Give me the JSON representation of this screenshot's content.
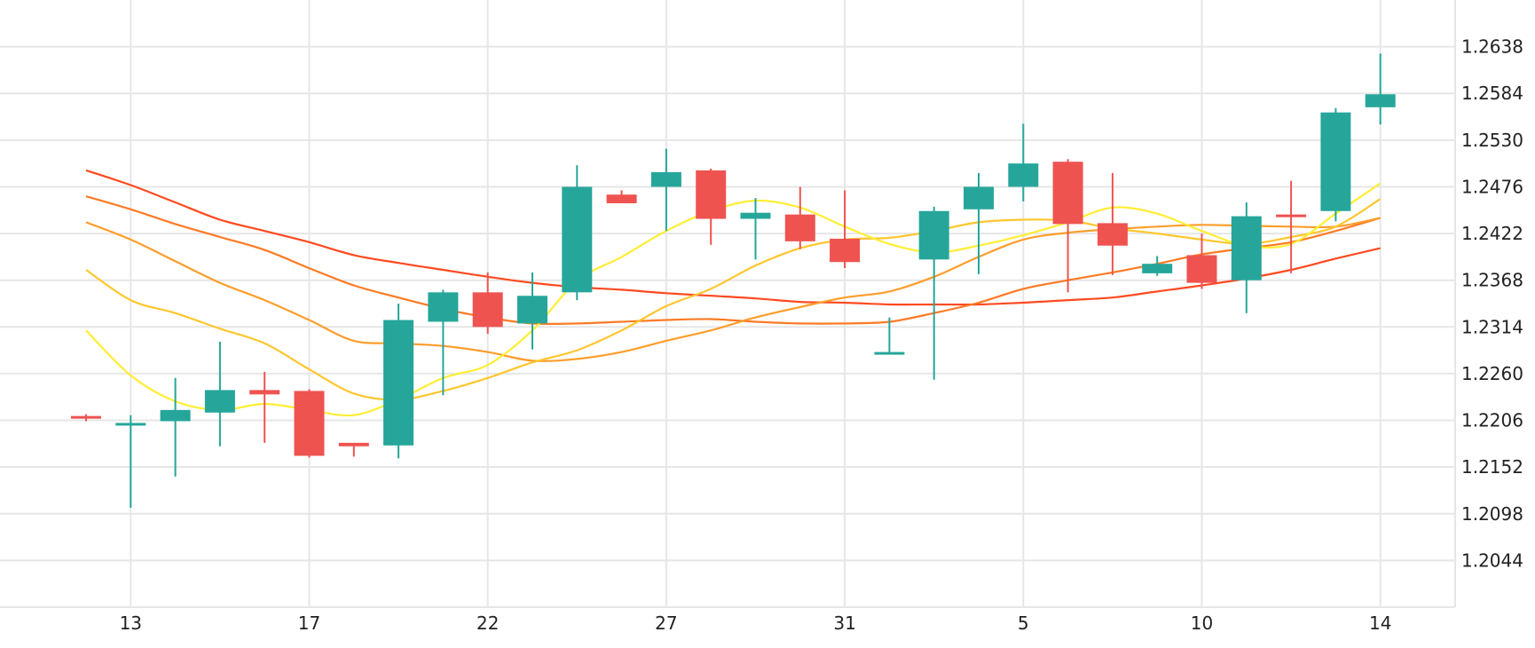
{
  "chart_data": {
    "type": "candlestick",
    "title": "",
    "xlabel": "",
    "ylabel": "",
    "ylim": [
      1.199,
      1.2692
    ],
    "yticks": [
      "1.2638",
      "1.2584",
      "1.2530",
      "1.2476",
      "1.2422",
      "1.2368",
      "1.2314",
      "1.2260",
      "1.2206",
      "1.2152",
      "1.2098",
      "1.2044"
    ],
    "xtick_labels": [
      {
        "index": 1,
        "label": "13"
      },
      {
        "index": 5,
        "label": "17"
      },
      {
        "index": 9,
        "label": "22"
      },
      {
        "index": 13,
        "label": "27"
      },
      {
        "index": 17,
        "label": "31"
      },
      {
        "index": 21,
        "label": "5"
      },
      {
        "index": 25,
        "label": "10"
      },
      {
        "index": 29,
        "label": "14"
      }
    ],
    "grid": true,
    "up_color": "#26a69a",
    "down_color": "#ef5350",
    "candles": [
      {
        "o": 1.2211,
        "h": 1.2213,
        "l": 1.2205,
        "c": 1.2209
      },
      {
        "o": 1.2201,
        "h": 1.2212,
        "l": 1.2105,
        "c": 1.2203
      },
      {
        "o": 1.2205,
        "h": 1.2255,
        "l": 1.2141,
        "c": 1.2218
      },
      {
        "o": 1.2215,
        "h": 1.2297,
        "l": 1.2176,
        "c": 1.2241
      },
      {
        "o": 1.2241,
        "h": 1.2262,
        "l": 1.218,
        "c": 1.2236
      },
      {
        "o": 1.224,
        "h": 1.2242,
        "l": 1.2163,
        "c": 1.2165
      },
      {
        "o": 1.218,
        "h": 1.218,
        "l": 1.2164,
        "c": 1.2176
      },
      {
        "o": 1.2177,
        "h": 1.2341,
        "l": 1.2162,
        "c": 1.2322
      },
      {
        "o": 1.232,
        "h": 1.2357,
        "l": 1.2235,
        "c": 1.2354
      },
      {
        "o": 1.2354,
        "h": 1.2377,
        "l": 1.2306,
        "c": 1.2314
      },
      {
        "o": 1.2318,
        "h": 1.2377,
        "l": 1.2288,
        "c": 1.235
      },
      {
        "o": 1.2354,
        "h": 1.2501,
        "l": 1.2345,
        "c": 1.2476
      },
      {
        "o": 1.2467,
        "h": 1.2472,
        "l": 1.2458,
        "c": 1.2457
      },
      {
        "o": 1.2476,
        "h": 1.252,
        "l": 1.2425,
        "c": 1.2493
      },
      {
        "o": 1.2495,
        "h": 1.2497,
        "l": 1.2409,
        "c": 1.2439
      },
      {
        "o": 1.2439,
        "h": 1.2463,
        "l": 1.2392,
        "c": 1.2446
      },
      {
        "o": 1.2444,
        "h": 1.2476,
        "l": 1.2404,
        "c": 1.2413
      },
      {
        "o": 1.2416,
        "h": 1.2472,
        "l": 1.2382,
        "c": 1.2389
      },
      {
        "o": 1.2283,
        "h": 1.2325,
        "l": 1.2282,
        "c": 1.2285
      },
      {
        "o": 1.2392,
        "h": 1.2453,
        "l": 1.2253,
        "c": 1.2448
      },
      {
        "o": 1.245,
        "h": 1.2492,
        "l": 1.2375,
        "c": 1.2476
      },
      {
        "o": 1.2476,
        "h": 1.2549,
        "l": 1.2459,
        "c": 1.2503
      },
      {
        "o": 1.2505,
        "h": 1.2508,
        "l": 1.2354,
        "c": 1.2433
      },
      {
        "o": 1.2434,
        "h": 1.2492,
        "l": 1.2374,
        "c": 1.2408
      },
      {
        "o": 1.2376,
        "h": 1.2396,
        "l": 1.2373,
        "c": 1.2387
      },
      {
        "o": 1.2397,
        "h": 1.2422,
        "l": 1.2358,
        "c": 1.2365
      },
      {
        "o": 1.2368,
        "h": 1.2458,
        "l": 1.233,
        "c": 1.2442
      },
      {
        "o": 1.2444,
        "h": 1.2483,
        "l": 1.2376,
        "c": 1.2442
      },
      {
        "o": 1.2448,
        "h": 1.2567,
        "l": 1.2436,
        "c": 1.2562
      },
      {
        "o": 1.2568,
        "h": 1.263,
        "l": 1.2548,
        "c": 1.2583
      }
    ],
    "overlay_lines": [
      {
        "color": "#ffee33",
        "points": [
          [
            0,
            1.231
          ],
          [
            1,
            1.2258
          ],
          [
            2,
            1.2228
          ],
          [
            3,
            1.2218
          ],
          [
            4,
            1.2225
          ],
          [
            5,
            1.2218
          ],
          [
            6,
            1.2212
          ],
          [
            7,
            1.223
          ],
          [
            8,
            1.2255
          ],
          [
            9,
            1.227
          ],
          [
            10,
            1.231
          ],
          [
            11,
            1.2367
          ],
          [
            12,
            1.2395
          ],
          [
            13,
            1.2425
          ],
          [
            14,
            1.2448
          ],
          [
            15,
            1.246
          ],
          [
            16,
            1.2452
          ],
          [
            17,
            1.243
          ],
          [
            18,
            1.241
          ],
          [
            19,
            1.24
          ],
          [
            20,
            1.2408
          ],
          [
            21,
            1.242
          ],
          [
            22,
            1.2435
          ],
          [
            23,
            1.2452
          ],
          [
            24,
            1.2445
          ],
          [
            25,
            1.2425
          ],
          [
            26,
            1.2408
          ],
          [
            27,
            1.241
          ],
          [
            28,
            1.2445
          ],
          [
            29,
            1.248
          ]
        ]
      },
      {
        "color": "#ffc62e",
        "points": [
          [
            0,
            1.238
          ],
          [
            1,
            1.2345
          ],
          [
            2,
            1.233
          ],
          [
            3,
            1.2312
          ],
          [
            4,
            1.2295
          ],
          [
            5,
            1.2265
          ],
          [
            6,
            1.2237
          ],
          [
            7,
            1.223
          ],
          [
            8,
            1.224
          ],
          [
            9,
            1.2255
          ],
          [
            10,
            1.2273
          ],
          [
            11,
            1.2287
          ],
          [
            12,
            1.231
          ],
          [
            13,
            1.2338
          ],
          [
            14,
            1.2358
          ],
          [
            15,
            1.2385
          ],
          [
            16,
            1.2405
          ],
          [
            17,
            1.2415
          ],
          [
            18,
            1.2417
          ],
          [
            19,
            1.2425
          ],
          [
            20,
            1.2435
          ],
          [
            21,
            1.2438
          ],
          [
            22,
            1.2437
          ],
          [
            23,
            1.2428
          ],
          [
            24,
            1.2422
          ],
          [
            25,
            1.2415
          ],
          [
            26,
            1.241
          ],
          [
            27,
            1.2418
          ],
          [
            28,
            1.243
          ],
          [
            29,
            1.2462
          ]
        ]
      },
      {
        "color": "#ff9d2a",
        "points": [
          [
            0,
            1.2435
          ],
          [
            1,
            1.2415
          ],
          [
            2,
            1.239
          ],
          [
            3,
            1.2365
          ],
          [
            4,
            1.2345
          ],
          [
            5,
            1.2322
          ],
          [
            6,
            1.2298
          ],
          [
            7,
            1.2295
          ],
          [
            8,
            1.2292
          ],
          [
            9,
            1.2285
          ],
          [
            10,
            1.2275
          ],
          [
            11,
            1.2277
          ],
          [
            12,
            1.2285
          ],
          [
            13,
            1.2298
          ],
          [
            14,
            1.231
          ],
          [
            15,
            1.2325
          ],
          [
            16,
            1.2337
          ],
          [
            17,
            1.2348
          ],
          [
            18,
            1.2355
          ],
          [
            19,
            1.2372
          ],
          [
            20,
            1.2395
          ],
          [
            21,
            1.2415
          ],
          [
            22,
            1.2423
          ],
          [
            23,
            1.2427
          ],
          [
            24,
            1.243
          ],
          [
            25,
            1.2432
          ],
          [
            26,
            1.2431
          ],
          [
            27,
            1.243
          ],
          [
            28,
            1.243
          ],
          [
            29,
            1.244
          ]
        ]
      },
      {
        "color": "#ff7a24",
        "points": [
          [
            0,
            1.2465
          ],
          [
            1,
            1.245
          ],
          [
            2,
            1.2433
          ],
          [
            3,
            1.2418
          ],
          [
            4,
            1.2403
          ],
          [
            5,
            1.2382
          ],
          [
            6,
            1.2362
          ],
          [
            7,
            1.2348
          ],
          [
            8,
            1.2335
          ],
          [
            9,
            1.2325
          ],
          [
            10,
            1.2318
          ],
          [
            11,
            1.2318
          ],
          [
            12,
            1.232
          ],
          [
            13,
            1.2322
          ],
          [
            14,
            1.2323
          ],
          [
            15,
            1.232
          ],
          [
            16,
            1.2318
          ],
          [
            17,
            1.2318
          ],
          [
            18,
            1.232
          ],
          [
            19,
            1.233
          ],
          [
            20,
            1.2342
          ],
          [
            21,
            1.2358
          ],
          [
            22,
            1.2368
          ],
          [
            23,
            1.2377
          ],
          [
            24,
            1.2387
          ],
          [
            25,
            1.2398
          ],
          [
            26,
            1.2405
          ],
          [
            27,
            1.2412
          ],
          [
            28,
            1.2425
          ],
          [
            29,
            1.244
          ]
        ]
      },
      {
        "color": "#ff4a1f",
        "points": [
          [
            0,
            1.2495
          ],
          [
            1,
            1.2478
          ],
          [
            2,
            1.2458
          ],
          [
            3,
            1.2438
          ],
          [
            4,
            1.2425
          ],
          [
            5,
            1.2412
          ],
          [
            6,
            1.2397
          ],
          [
            7,
            1.2388
          ],
          [
            8,
            1.238
          ],
          [
            9,
            1.2372
          ],
          [
            10,
            1.2365
          ],
          [
            11,
            1.236
          ],
          [
            12,
            1.2357
          ],
          [
            13,
            1.2353
          ],
          [
            14,
            1.235
          ],
          [
            15,
            1.2347
          ],
          [
            16,
            1.2343
          ],
          [
            17,
            1.2342
          ],
          [
            18,
            1.234
          ],
          [
            19,
            1.234
          ],
          [
            20,
            1.234
          ],
          [
            21,
            1.2342
          ],
          [
            22,
            1.2345
          ],
          [
            23,
            1.2348
          ],
          [
            24,
            1.2355
          ],
          [
            25,
            1.2362
          ],
          [
            26,
            1.237
          ],
          [
            27,
            1.238
          ],
          [
            28,
            1.2393
          ],
          [
            29,
            1.2405
          ]
        ]
      }
    ]
  }
}
